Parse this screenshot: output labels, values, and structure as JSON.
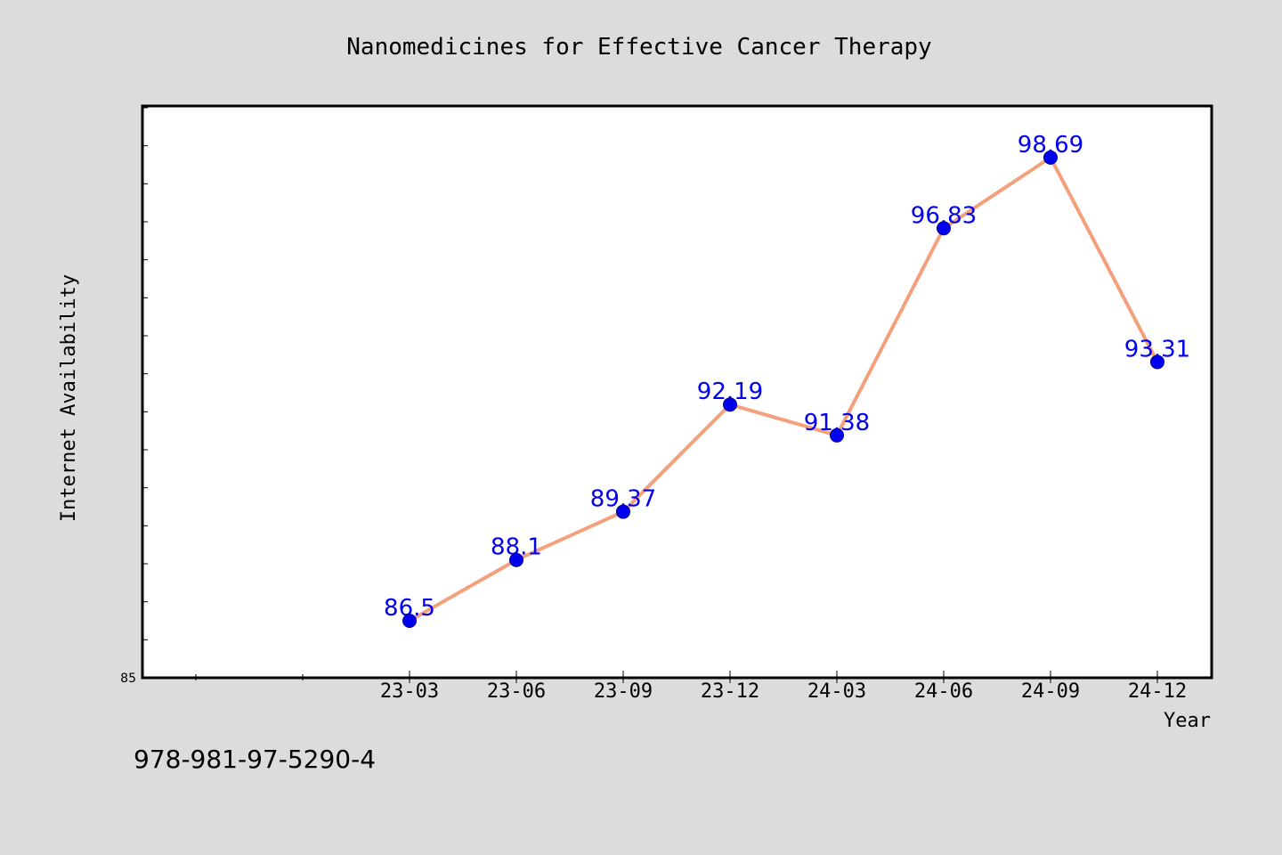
{
  "chart_data": {
    "type": "line",
    "title": "Nanomedicines for Effective Cancer Therapy",
    "xlabel": "Year",
    "ylabel": "Internet Availability",
    "categories": [
      "23-03",
      "23-06",
      "23-09",
      "23-12",
      "24-03",
      "24-06",
      "24-09",
      "24-12"
    ],
    "values": [
      86.5,
      88.1,
      89.37,
      92.19,
      91.38,
      96.83,
      98.69,
      93.31
    ],
    "data_labels": [
      "86.5",
      "88.1",
      "89.37",
      "92.19",
      "91.38",
      "96.83",
      "98.69",
      "93.31"
    ],
    "ylim": [
      85,
      100
    ],
    "ytick_labels": [
      "85"
    ],
    "grid": false,
    "line_color": "#f4a07c",
    "marker_color": "#0000ee",
    "label_color": "#0000ee",
    "plot_background": "#ffffff",
    "page_background": "#dcdcdc"
  },
  "footer": {
    "isbn": "978-981-97-5290-4"
  }
}
